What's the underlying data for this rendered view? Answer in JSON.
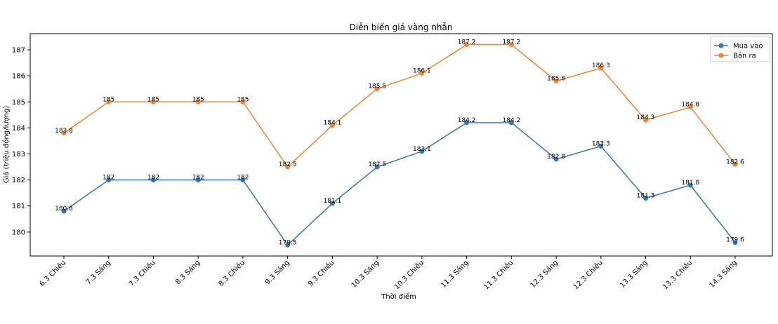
{
  "chart_data": {
    "type": "line",
    "title": "Diễn biến giá vàng nhẫn",
    "xlabel": "Thời điểm",
    "ylabel": "Giá (triệu đồng/lượng)",
    "categories": [
      "6.3 Chiều",
      "7.3 Sáng",
      "7.3 Chiều",
      "8.3 Sáng",
      "8.3 Chiều",
      "9.3 Sáng",
      "9.3 Chiều",
      "10.3 Sáng",
      "10.3 Chiều",
      "11.3 Sáng",
      "11.3 Chiều",
      "12.3 Sáng",
      "12.3 Chiều",
      "13.3 Sáng",
      "13.3 Chiều",
      "14.3 Sáng"
    ],
    "series": [
      {
        "name": "Mua vào",
        "color": "#3b75af",
        "values": [
          180.8,
          182,
          182,
          182,
          182,
          179.5,
          181.1,
          182.5,
          183.1,
          184.2,
          184.2,
          182.8,
          183.3,
          181.3,
          181.8,
          179.6
        ]
      },
      {
        "name": "Bán ra",
        "color": "#ef8636",
        "values": [
          183.8,
          185,
          185,
          185,
          185,
          182.5,
          184.1,
          185.5,
          186.1,
          187.2,
          187.2,
          185.8,
          186.3,
          184.3,
          184.8,
          182.6
        ]
      }
    ],
    "yticks": [
      180,
      181,
      182,
      183,
      184,
      185,
      186,
      187
    ],
    "ylim": [
      179.08,
      187.62
    ],
    "grid": false,
    "legend": "top-right",
    "markers": "circle",
    "data_labels": true
  }
}
